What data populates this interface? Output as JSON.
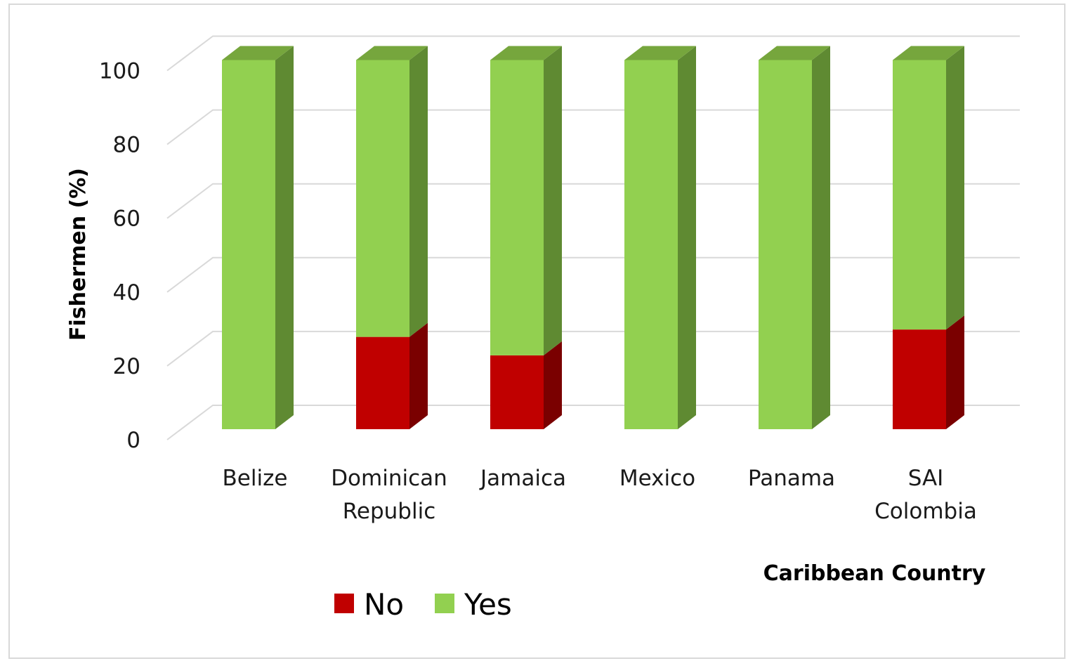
{
  "chart_data": {
    "type": "bar",
    "stacked": true,
    "view": "3d",
    "title": "",
    "xlabel": "Caribbean Country",
    "ylabel": "Fishermen (%)",
    "ylim": [
      0,
      100
    ],
    "yticks": [
      0,
      20,
      40,
      60,
      80,
      100
    ],
    "grid": true,
    "legend_position": "bottom-left",
    "categories": [
      [
        "Belize"
      ],
      [
        "Dominican",
        "Republic"
      ],
      [
        "Jamaica"
      ],
      [
        "Mexico"
      ],
      [
        "Panama"
      ],
      [
        "SAI",
        "Colombia"
      ]
    ],
    "series": [
      {
        "name": "No",
        "color": "#c00000",
        "side_color": "#7a0000",
        "values": [
          0,
          25,
          20,
          0,
          0,
          27
        ]
      },
      {
        "name": "Yes",
        "color": "#92d050",
        "side_color": "#5f8a32",
        "top_color": "#76a63d",
        "values": [
          100,
          75,
          80,
          100,
          100,
          73
        ]
      }
    ]
  }
}
